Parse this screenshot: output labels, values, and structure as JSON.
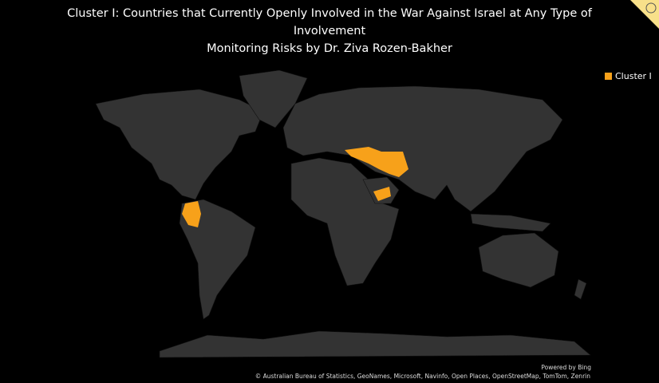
{
  "header": {
    "title": "Cluster I: Countries that Currently Openly Involved in the War Against Israel at Any Type of Involvement",
    "subtitle": "Monitoring Risks by Dr. Ziva Rozen-Bakher"
  },
  "legend": {
    "label": "Cluster I",
    "color": "#f7a11a"
  },
  "footer": {
    "powered": "Powered by Bing",
    "credits": "© Australian Bureau of Statistics, GeoNames, Microsoft, Navinfo, Open Places, OpenStreetMap, TomTom, Zenrin"
  }
}
